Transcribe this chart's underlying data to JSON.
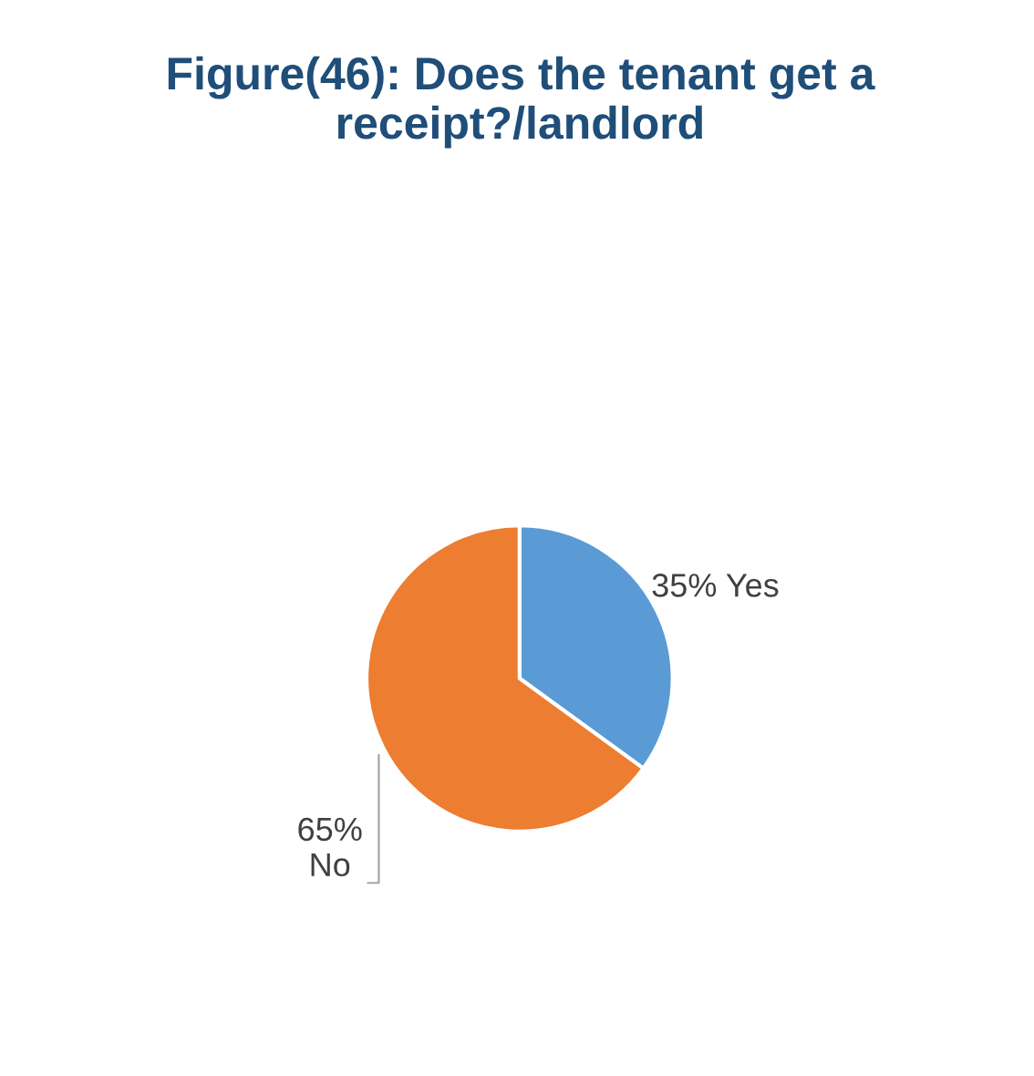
{
  "chart_data": {
    "type": "pie",
    "title": "Figure(46): Does the tenant get a receipt?/landlord",
    "categories": [
      "Yes",
      "No"
    ],
    "values": [
      35,
      65
    ],
    "colors": [
      "#5b9bd5",
      "#ed7d31"
    ],
    "value_labels": [
      "35%",
      "65%"
    ],
    "legend": false
  }
}
